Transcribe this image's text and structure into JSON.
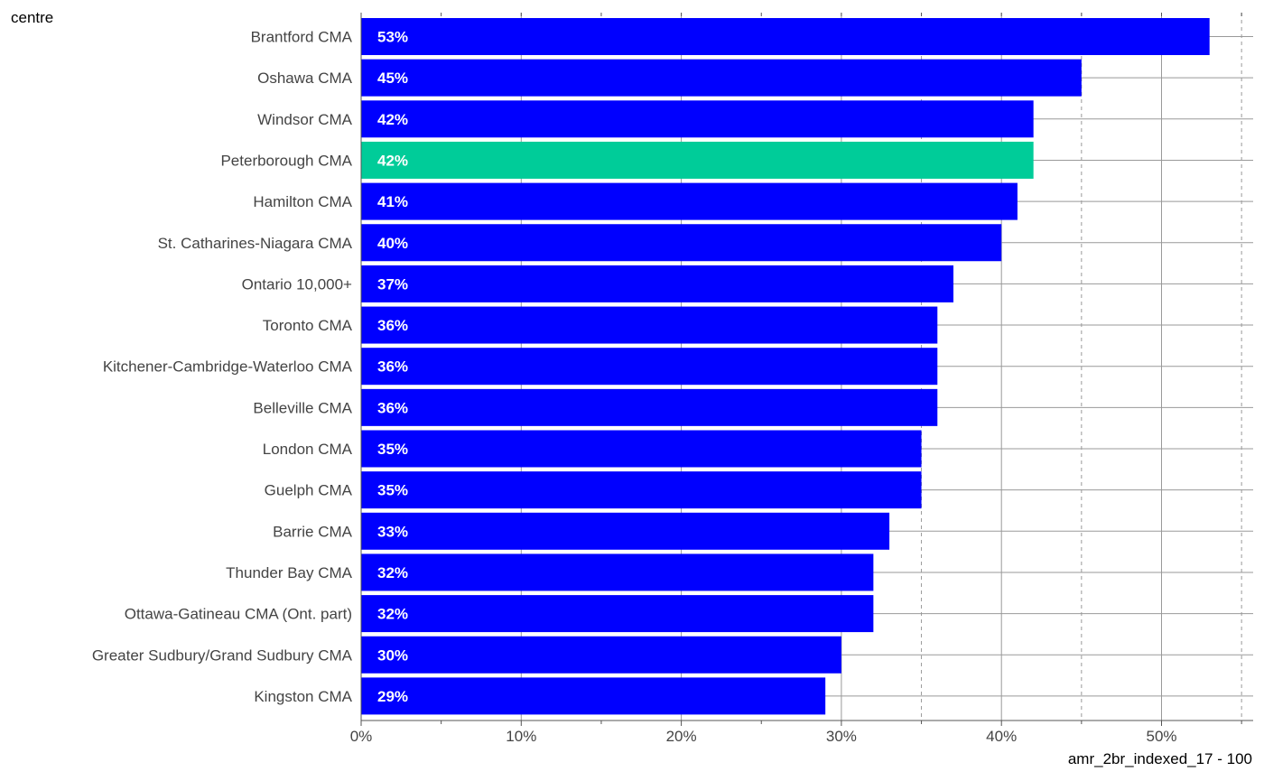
{
  "chart_data": {
    "type": "bar",
    "orientation": "horizontal",
    "ylabel": "centre",
    "xlabel": "amr_2br_indexed_17 - 100",
    "categories": [
      "Brantford CMA",
      "Oshawa CMA",
      "Windsor CMA",
      "Peterborough CMA",
      "Hamilton CMA",
      "St. Catharines-Niagara CMA",
      "Ontario 10,000+",
      "Toronto CMA",
      "Kitchener-Cambridge-Waterloo CMA",
      "Belleville CMA",
      "London CMA",
      "Guelph CMA",
      "Barrie CMA",
      "Thunder Bay CMA",
      "Ottawa-Gatineau CMA (Ont. part)",
      "Greater Sudbury/Grand Sudbury CMA",
      "Kingston CMA"
    ],
    "values": [
      53,
      45,
      42,
      42,
      41,
      40,
      37,
      36,
      36,
      36,
      35,
      35,
      33,
      32,
      32,
      30,
      29
    ],
    "value_labels": [
      "53%",
      "45%",
      "42%",
      "42%",
      "41%",
      "40%",
      "37%",
      "36%",
      "36%",
      "36%",
      "35%",
      "35%",
      "33%",
      "32%",
      "32%",
      "30%",
      "29%"
    ],
    "highlight_index": 3,
    "xlim": [
      0,
      55
    ],
    "x_ticks": [
      0,
      10,
      20,
      30,
      40,
      50
    ],
    "x_tick_labels": [
      "0%",
      "10%",
      "20%",
      "30%",
      "40%",
      "50%"
    ],
    "minor_ticks": [
      5,
      15,
      25,
      35,
      45,
      55
    ],
    "dashed_reference_lines": [
      35,
      45,
      55
    ],
    "grid": true,
    "legend": "none",
    "colors": {
      "bar": "#0000ff",
      "highlight": "#00cc99",
      "value_label": "#ffffff",
      "grid": "#999999"
    }
  }
}
